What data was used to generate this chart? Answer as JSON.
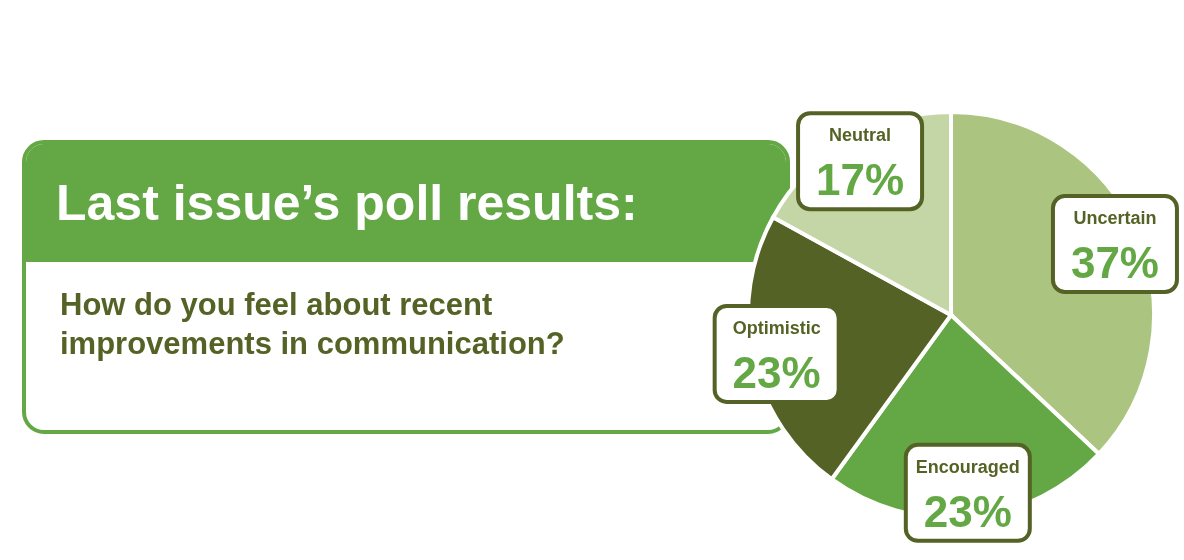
{
  "chart_data": {
    "type": "pie",
    "title": "Last issue’s poll results:",
    "subtitle": "How do you feel about recent improvements in communication?",
    "categories": [
      "Uncertain",
      "Encouraged",
      "Optimistic",
      "Neutral"
    ],
    "values": [
      37,
      23,
      23,
      17
    ],
    "value_labels": [
      "37%",
      "23%",
      "23%",
      "17%"
    ],
    "colors": [
      "#abc47f",
      "#63a844",
      "#546325",
      "#c4d6a5"
    ],
    "legend": false
  }
}
